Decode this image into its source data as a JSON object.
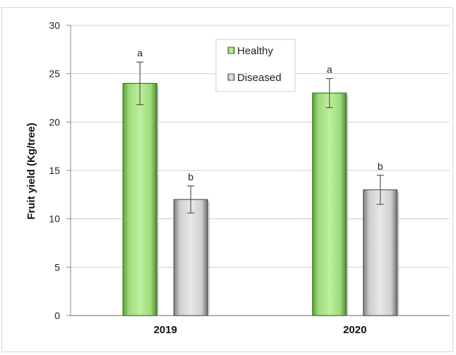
{
  "chart_data": {
    "type": "bar",
    "categories": [
      "2019",
      "2020"
    ],
    "series": [
      {
        "name": "Healthy",
        "values": [
          24,
          23
        ],
        "errors": [
          2.2,
          1.5
        ],
        "letters": [
          "a",
          "a"
        ],
        "color": "#8fd16a"
      },
      {
        "name": "Diseased",
        "values": [
          12,
          13
        ],
        "errors": [
          1.4,
          1.5
        ],
        "letters": [
          "b",
          "b"
        ],
        "color": "#c0c0c0"
      }
    ],
    "ylabel": "Fruit yield (Kg/tree)",
    "xlabel": "",
    "ylim": [
      0,
      30
    ],
    "yticks": [
      0,
      5,
      10,
      15,
      20,
      25,
      30
    ],
    "grid": true,
    "legend_position": "top-center"
  }
}
